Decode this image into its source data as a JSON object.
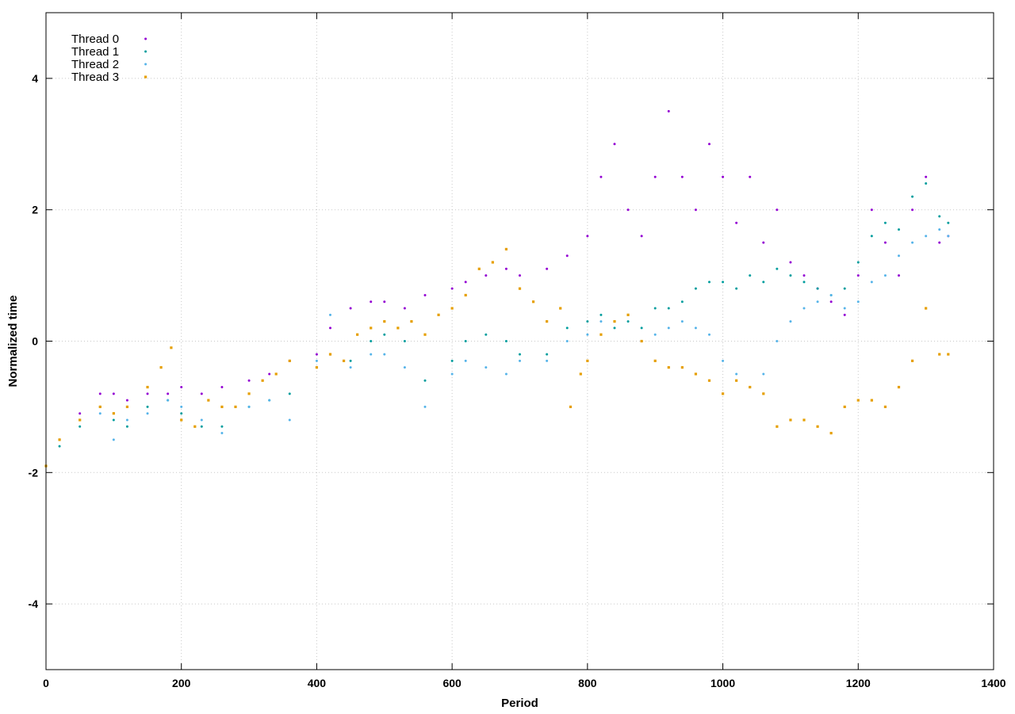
{
  "chart_data": {
    "type": "scatter",
    "title": "",
    "xlabel": "Period",
    "ylabel": "Normalized time",
    "xlim": [
      0,
      1400
    ],
    "ylim": [
      -5,
      5
    ],
    "x_ticks": [
      0,
      200,
      400,
      600,
      800,
      1000,
      1200,
      1400
    ],
    "y_ticks": [
      -4,
      -2,
      0,
      2,
      4
    ],
    "grid": true,
    "legend_position": "top-left",
    "series": [
      {
        "name": "Thread 0",
        "color": "#9400d3",
        "marker": "dot",
        "approx_points": [
          [
            0,
            -1.9
          ],
          [
            20,
            -1.5
          ],
          [
            50,
            -1.1
          ],
          [
            80,
            -0.8
          ],
          [
            100,
            -0.8
          ],
          [
            120,
            -0.9
          ],
          [
            150,
            -0.8
          ],
          [
            180,
            -0.8
          ],
          [
            200,
            -0.7
          ],
          [
            230,
            -0.8
          ],
          [
            260,
            -0.7
          ],
          [
            300,
            -0.6
          ],
          [
            330,
            -0.5
          ],
          [
            360,
            -0.3
          ],
          [
            400,
            -0.2
          ],
          [
            420,
            0.2
          ],
          [
            450,
            0.5
          ],
          [
            480,
            0.6
          ],
          [
            500,
            0.6
          ],
          [
            530,
            0.5
          ],
          [
            560,
            0.7
          ],
          [
            600,
            0.8
          ],
          [
            620,
            0.9
          ],
          [
            650,
            1.0
          ],
          [
            680,
            1.1
          ],
          [
            700,
            1.0
          ],
          [
            740,
            1.1
          ],
          [
            770,
            1.3
          ],
          [
            800,
            1.6
          ],
          [
            820,
            2.5
          ],
          [
            840,
            3.0
          ],
          [
            860,
            2.0
          ],
          [
            880,
            1.6
          ],
          [
            900,
            2.5
          ],
          [
            920,
            3.5
          ],
          [
            940,
            2.5
          ],
          [
            960,
            2.0
          ],
          [
            980,
            3.0
          ],
          [
            1000,
            2.5
          ],
          [
            1020,
            1.8
          ],
          [
            1040,
            2.5
          ],
          [
            1060,
            1.5
          ],
          [
            1080,
            2.0
          ],
          [
            1100,
            1.2
          ],
          [
            1120,
            1.0
          ],
          [
            1140,
            0.8
          ],
          [
            1160,
            0.6
          ],
          [
            1180,
            0.4
          ],
          [
            1200,
            1.0
          ],
          [
            1220,
            2.0
          ],
          [
            1240,
            1.5
          ],
          [
            1260,
            1.0
          ],
          [
            1280,
            2.0
          ],
          [
            1300,
            2.5
          ],
          [
            1320,
            1.5
          ],
          [
            1333,
            1.6
          ]
        ]
      },
      {
        "name": "Thread 1",
        "color": "#009e9e",
        "marker": "dot",
        "approx_points": [
          [
            0,
            -1.9
          ],
          [
            20,
            -1.6
          ],
          [
            50,
            -1.3
          ],
          [
            80,
            -1.0
          ],
          [
            100,
            -1.2
          ],
          [
            120,
            -1.3
          ],
          [
            150,
            -1.0
          ],
          [
            180,
            -0.9
          ],
          [
            200,
            -1.1
          ],
          [
            230,
            -1.3
          ],
          [
            260,
            -1.3
          ],
          [
            300,
            -1.0
          ],
          [
            330,
            -0.9
          ],
          [
            360,
            -0.8
          ],
          [
            400,
            -0.4
          ],
          [
            420,
            -0.2
          ],
          [
            450,
            -0.3
          ],
          [
            480,
            0.0
          ],
          [
            500,
            0.1
          ],
          [
            530,
            0.0
          ],
          [
            560,
            -0.6
          ],
          [
            600,
            -0.3
          ],
          [
            620,
            0.0
          ],
          [
            650,
            0.1
          ],
          [
            680,
            0.0
          ],
          [
            700,
            -0.2
          ],
          [
            740,
            -0.2
          ],
          [
            770,
            0.2
          ],
          [
            800,
            0.3
          ],
          [
            820,
            0.4
          ],
          [
            840,
            0.2
          ],
          [
            860,
            0.3
          ],
          [
            880,
            0.2
          ],
          [
            900,
            0.5
          ],
          [
            920,
            0.5
          ],
          [
            940,
            0.6
          ],
          [
            960,
            0.8
          ],
          [
            980,
            0.9
          ],
          [
            1000,
            0.9
          ],
          [
            1020,
            0.8
          ],
          [
            1040,
            1.0
          ],
          [
            1060,
            0.9
          ],
          [
            1080,
            1.1
          ],
          [
            1100,
            1.0
          ],
          [
            1120,
            0.9
          ],
          [
            1140,
            0.8
          ],
          [
            1160,
            0.7
          ],
          [
            1180,
            0.8
          ],
          [
            1200,
            1.2
          ],
          [
            1220,
            1.6
          ],
          [
            1240,
            1.8
          ],
          [
            1260,
            1.7
          ],
          [
            1280,
            2.2
          ],
          [
            1300,
            2.4
          ],
          [
            1320,
            1.9
          ],
          [
            1333,
            1.8
          ]
        ]
      },
      {
        "name": "Thread 2",
        "color": "#56b4e9",
        "marker": "dot",
        "approx_points": [
          [
            0,
            -1.9
          ],
          [
            20,
            -1.5
          ],
          [
            50,
            -1.2
          ],
          [
            80,
            -1.1
          ],
          [
            100,
            -1.5
          ],
          [
            120,
            -1.2
          ],
          [
            150,
            -1.1
          ],
          [
            180,
            -0.9
          ],
          [
            200,
            -1.0
          ],
          [
            230,
            -1.2
          ],
          [
            260,
            -1.4
          ],
          [
            300,
            -1.0
          ],
          [
            330,
            -0.9
          ],
          [
            360,
            -1.2
          ],
          [
            400,
            -0.3
          ],
          [
            420,
            0.4
          ],
          [
            450,
            -0.4
          ],
          [
            480,
            -0.2
          ],
          [
            500,
            -0.2
          ],
          [
            530,
            -0.4
          ],
          [
            560,
            -1.0
          ],
          [
            600,
            -0.5
          ],
          [
            620,
            -0.3
          ],
          [
            650,
            -0.4
          ],
          [
            680,
            -0.5
          ],
          [
            700,
            -0.3
          ],
          [
            740,
            -0.3
          ],
          [
            770,
            0.0
          ],
          [
            800,
            0.1
          ],
          [
            820,
            0.3
          ],
          [
            840,
            0.3
          ],
          [
            860,
            0.4
          ],
          [
            880,
            0.0
          ],
          [
            900,
            0.1
          ],
          [
            920,
            0.2
          ],
          [
            940,
            0.3
          ],
          [
            960,
            0.2
          ],
          [
            980,
            0.1
          ],
          [
            1000,
            -0.3
          ],
          [
            1020,
            -0.5
          ],
          [
            1040,
            -0.7
          ],
          [
            1060,
            -0.5
          ],
          [
            1080,
            0.0
          ],
          [
            1100,
            0.3
          ],
          [
            1120,
            0.5
          ],
          [
            1140,
            0.6
          ],
          [
            1160,
            0.7
          ],
          [
            1180,
            0.5
          ],
          [
            1200,
            0.6
          ],
          [
            1220,
            0.9
          ],
          [
            1240,
            1.0
          ],
          [
            1260,
            1.3
          ],
          [
            1280,
            1.5
          ],
          [
            1300,
            1.6
          ],
          [
            1320,
            1.7
          ],
          [
            1333,
            1.6
          ]
        ]
      },
      {
        "name": "Thread 3",
        "color": "#e69f00",
        "marker": "square",
        "approx_points": [
          [
            0,
            -1.9
          ],
          [
            20,
            -1.5
          ],
          [
            50,
            -1.2
          ],
          [
            80,
            -1.0
          ],
          [
            100,
            -1.1
          ],
          [
            120,
            -1.0
          ],
          [
            150,
            -0.7
          ],
          [
            170,
            -0.4
          ],
          [
            185,
            -0.1
          ],
          [
            200,
            -1.2
          ],
          [
            220,
            -1.3
          ],
          [
            240,
            -0.9
          ],
          [
            260,
            -1.0
          ],
          [
            280,
            -1.0
          ],
          [
            300,
            -0.8
          ],
          [
            320,
            -0.6
          ],
          [
            340,
            -0.5
          ],
          [
            360,
            -0.3
          ],
          [
            400,
            -0.4
          ],
          [
            420,
            -0.2
          ],
          [
            440,
            -0.3
          ],
          [
            460,
            0.1
          ],
          [
            480,
            0.2
          ],
          [
            500,
            0.3
          ],
          [
            520,
            0.2
          ],
          [
            540,
            0.3
          ],
          [
            560,
            0.1
          ],
          [
            580,
            0.4
          ],
          [
            600,
            0.5
          ],
          [
            620,
            0.7
          ],
          [
            640,
            1.1
          ],
          [
            660,
            1.2
          ],
          [
            680,
            1.4
          ],
          [
            700,
            0.8
          ],
          [
            720,
            0.6
          ],
          [
            740,
            0.3
          ],
          [
            760,
            0.5
          ],
          [
            775,
            -1.0
          ],
          [
            790,
            -0.5
          ],
          [
            800,
            -0.3
          ],
          [
            820,
            0.1
          ],
          [
            840,
            0.3
          ],
          [
            860,
            0.4
          ],
          [
            880,
            0.0
          ],
          [
            900,
            -0.3
          ],
          [
            920,
            -0.4
          ],
          [
            940,
            -0.4
          ],
          [
            960,
            -0.5
          ],
          [
            980,
            -0.6
          ],
          [
            1000,
            -0.8
          ],
          [
            1020,
            -0.6
          ],
          [
            1040,
            -0.7
          ],
          [
            1060,
            -0.8
          ],
          [
            1080,
            -1.3
          ],
          [
            1100,
            -1.2
          ],
          [
            1120,
            -1.2
          ],
          [
            1140,
            -1.3
          ],
          [
            1160,
            -1.4
          ],
          [
            1180,
            -1.0
          ],
          [
            1200,
            -0.9
          ],
          [
            1220,
            -0.9
          ],
          [
            1240,
            -1.0
          ],
          [
            1260,
            -0.7
          ],
          [
            1280,
            -0.3
          ],
          [
            1300,
            0.5
          ],
          [
            1320,
            -0.2
          ],
          [
            1333,
            -0.2
          ]
        ]
      }
    ]
  }
}
